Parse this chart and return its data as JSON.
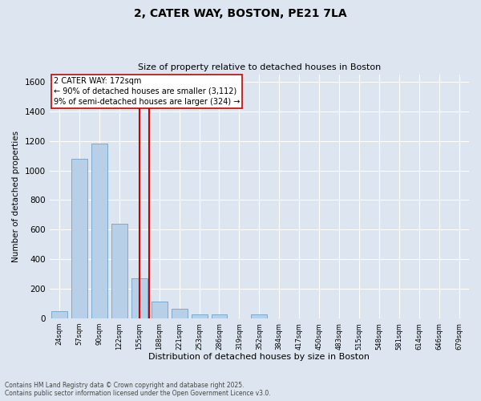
{
  "title_line1": "2, CATER WAY, BOSTON, PE21 7LA",
  "title_line2": "Size of property relative to detached houses in Boston",
  "xlabel": "Distribution of detached houses by size in Boston",
  "ylabel": "Number of detached properties",
  "bar_color": "#b8cfe8",
  "bar_edge_color": "#7aaad0",
  "background_color": "#dde6f0",
  "grid_color": "#ffffff",
  "vline_color": "#cc0000",
  "vline_x": 5,
  "annotation_text": "2 CATER WAY: 172sqm\n← 90% of detached houses are smaller (3,112)\n9% of semi-detached houses are larger (324) →",
  "annotation_box_color": "#ffffff",
  "annotation_box_edge": "#cc0000",
  "bin_labels": [
    "24sqm",
    "57sqm",
    "90sqm",
    "122sqm",
    "155sqm",
    "188sqm",
    "221sqm",
    "253sqm",
    "286sqm",
    "319sqm",
    "352sqm",
    "384sqm",
    "417sqm",
    "450sqm",
    "483sqm",
    "515sqm",
    "548sqm",
    "581sqm",
    "614sqm",
    "646sqm",
    "679sqm"
  ],
  "bar_heights": [
    50,
    1080,
    1180,
    640,
    270,
    115,
    65,
    30,
    30,
    0,
    30,
    0,
    0,
    0,
    0,
    0,
    0,
    0,
    0,
    0
  ],
  "ylim": [
    0,
    1650
  ],
  "yticks": [
    0,
    200,
    400,
    600,
    800,
    1000,
    1200,
    1400,
    1600
  ],
  "footer_line1": "Contains HM Land Registry data © Crown copyright and database right 2025.",
  "footer_line2": "Contains public sector information licensed under the Open Government Licence v3.0."
}
